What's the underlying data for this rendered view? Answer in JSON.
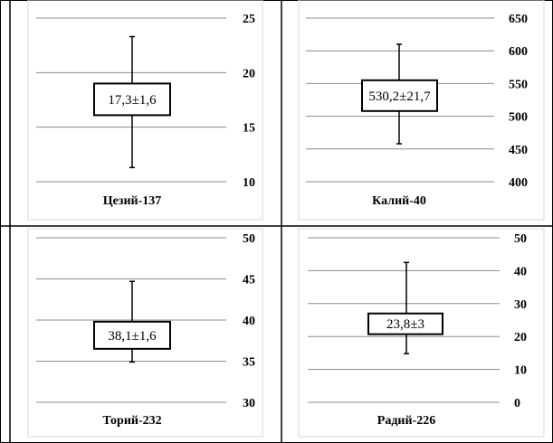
{
  "chart_data": [
    {
      "type": "boxplot",
      "xlabel": "Цезий-137",
      "ylim": [
        10,
        25
      ],
      "ticks": [
        10,
        15,
        20,
        25
      ],
      "tick_labels": [
        "10",
        "15",
        "20",
        "25"
      ],
      "whisker_low": 11.3,
      "whisker_high": 23.3,
      "box_low": 16.1,
      "box_high": 19.0,
      "box_label": "17,3±1,6"
    },
    {
      "type": "boxplot",
      "xlabel": "Калий-40",
      "ylim": [
        400,
        650
      ],
      "ticks": [
        400,
        450,
        500,
        550,
        600,
        650
      ],
      "tick_labels": [
        "400",
        "450",
        "500",
        "550",
        "600",
        "650"
      ],
      "whisker_low": 458,
      "whisker_high": 610,
      "box_low": 508,
      "box_high": 555,
      "box_label": "530,2±21,7"
    },
    {
      "type": "boxplot",
      "xlabel": "Торий-232",
      "ylim": [
        30,
        50
      ],
      "ticks": [
        30,
        35,
        40,
        45,
        50
      ],
      "tick_labels": [
        "30",
        "35",
        "40",
        "45",
        "50"
      ],
      "whisker_low": 34.9,
      "whisker_high": 44.7,
      "box_low": 36.5,
      "box_high": 39.8,
      "box_label": "38,1±1,6"
    },
    {
      "type": "boxplot",
      "xlabel": "Радий-226",
      "ylim": [
        0,
        50
      ],
      "ticks": [
        0,
        10,
        20,
        30,
        40,
        50
      ],
      "tick_labels": [
        "0",
        "10",
        "20",
        "30",
        "40",
        "50"
      ],
      "whisker_low": 14.8,
      "whisker_high": 42.5,
      "box_low": 20.7,
      "box_high": 27.0,
      "box_label": "23,8±3"
    }
  ]
}
